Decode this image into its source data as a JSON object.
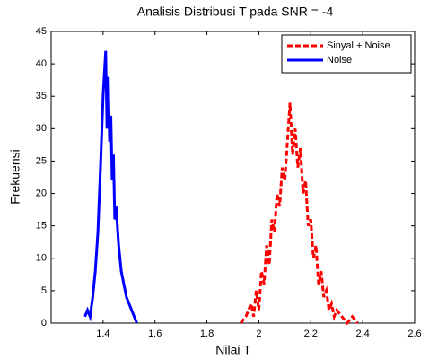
{
  "chart_data": {
    "type": "line",
    "title": "Analisis Distribusi T pada SNR = -4",
    "x_label": "Nilai T",
    "y_label": "Frekuensi",
    "xlim": [
      1.2,
      2.6
    ],
    "xticks": [
      1.4,
      1.6,
      1.8,
      2,
      2.2,
      2.4,
      2.6
    ],
    "ylim": [
      0,
      45
    ],
    "yticks": [
      0,
      5,
      10,
      15,
      20,
      25,
      30,
      35,
      40,
      45
    ],
    "legend": "upper right",
    "series": [
      {
        "name": "Sinyal + Noise",
        "color": "#ff0000",
        "style": "dashed",
        "x": [
          1.93,
          1.95,
          1.97,
          1.98,
          1.99,
          2.0,
          2.01,
          2.02,
          2.03,
          2.04,
          2.05,
          2.06,
          2.07,
          2.08,
          2.09,
          2.1,
          2.11,
          2.12,
          2.13,
          2.14,
          2.15,
          2.16,
          2.17,
          2.18,
          2.19,
          2.2,
          2.21,
          2.22,
          2.23,
          2.24,
          2.25,
          2.26,
          2.27,
          2.28,
          2.29,
          2.3,
          2.32,
          2.34,
          2.36,
          2.38
        ],
        "values": [
          0,
          1,
          3,
          1,
          5,
          2,
          8,
          6,
          12,
          9,
          16,
          14,
          20,
          18,
          24,
          22,
          28,
          34,
          26,
          30,
          24,
          27,
          20,
          22,
          15,
          16,
          10,
          12,
          6,
          8,
          4,
          5,
          2,
          3,
          1,
          2,
          1,
          0,
          1,
          0
        ]
      },
      {
        "name": "Noise",
        "color": "#0000ff",
        "style": "solid",
        "x": [
          1.33,
          1.34,
          1.35,
          1.36,
          1.37,
          1.38,
          1.39,
          1.4,
          1.41,
          1.415,
          1.42,
          1.425,
          1.43,
          1.435,
          1.44,
          1.445,
          1.45,
          1.46,
          1.47,
          1.48,
          1.49,
          1.5,
          1.51,
          1.52,
          1.53
        ],
        "values": [
          1,
          2,
          1,
          4,
          8,
          14,
          24,
          35,
          42,
          30,
          38,
          28,
          32,
          22,
          26,
          16,
          18,
          12,
          8,
          6,
          4,
          3,
          2,
          1,
          0
        ]
      }
    ]
  }
}
